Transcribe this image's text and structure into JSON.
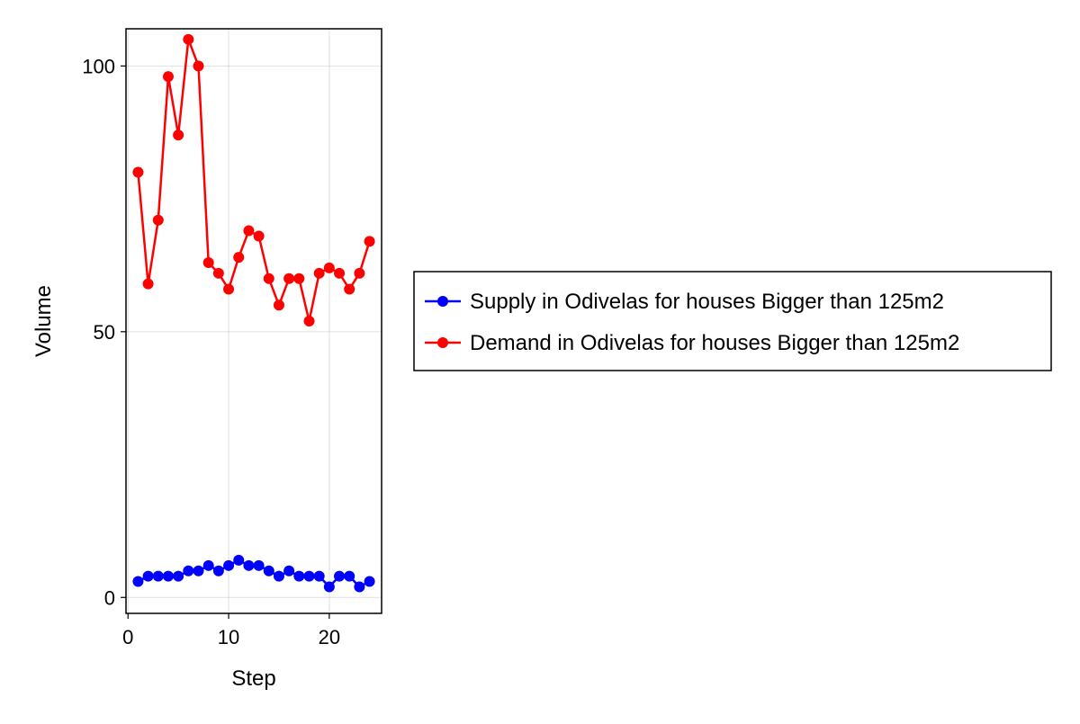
{
  "chart_data": {
    "type": "line",
    "xlabel": "Step",
    "ylabel": "Volume",
    "xlim": [
      -0.2,
      25.2
    ],
    "ylim": [
      -3,
      107
    ],
    "xticks": [
      0,
      10,
      20
    ],
    "yticks": [
      0,
      50,
      100
    ],
    "xtick_labels": [
      "0",
      "10",
      "20"
    ],
    "ytick_labels": [
      "0",
      "50",
      "100"
    ],
    "grid": true,
    "legend_position": "right",
    "x": [
      1,
      2,
      3,
      4,
      5,
      6,
      7,
      8,
      9,
      10,
      11,
      12,
      13,
      14,
      15,
      16,
      17,
      18,
      19,
      20,
      21,
      22,
      23,
      24
    ],
    "series": [
      {
        "name": "Supply in Odivelas for houses Bigger than 125m2",
        "color": "#0000ff",
        "values": [
          3,
          4,
          4,
          4,
          4,
          5,
          5,
          6,
          5,
          6,
          7,
          6,
          6,
          5,
          4,
          5,
          4,
          4,
          4,
          2,
          4,
          4,
          2,
          3
        ]
      },
      {
        "name": "Demand in Odivelas for houses Bigger than 125m2",
        "color": "#ff0000",
        "values": [
          80,
          59,
          71,
          98,
          87,
          105,
          100,
          63,
          61,
          58,
          64,
          69,
          68,
          60,
          55,
          60,
          60,
          52,
          61,
          62,
          61,
          58,
          61,
          67
        ]
      }
    ]
  }
}
